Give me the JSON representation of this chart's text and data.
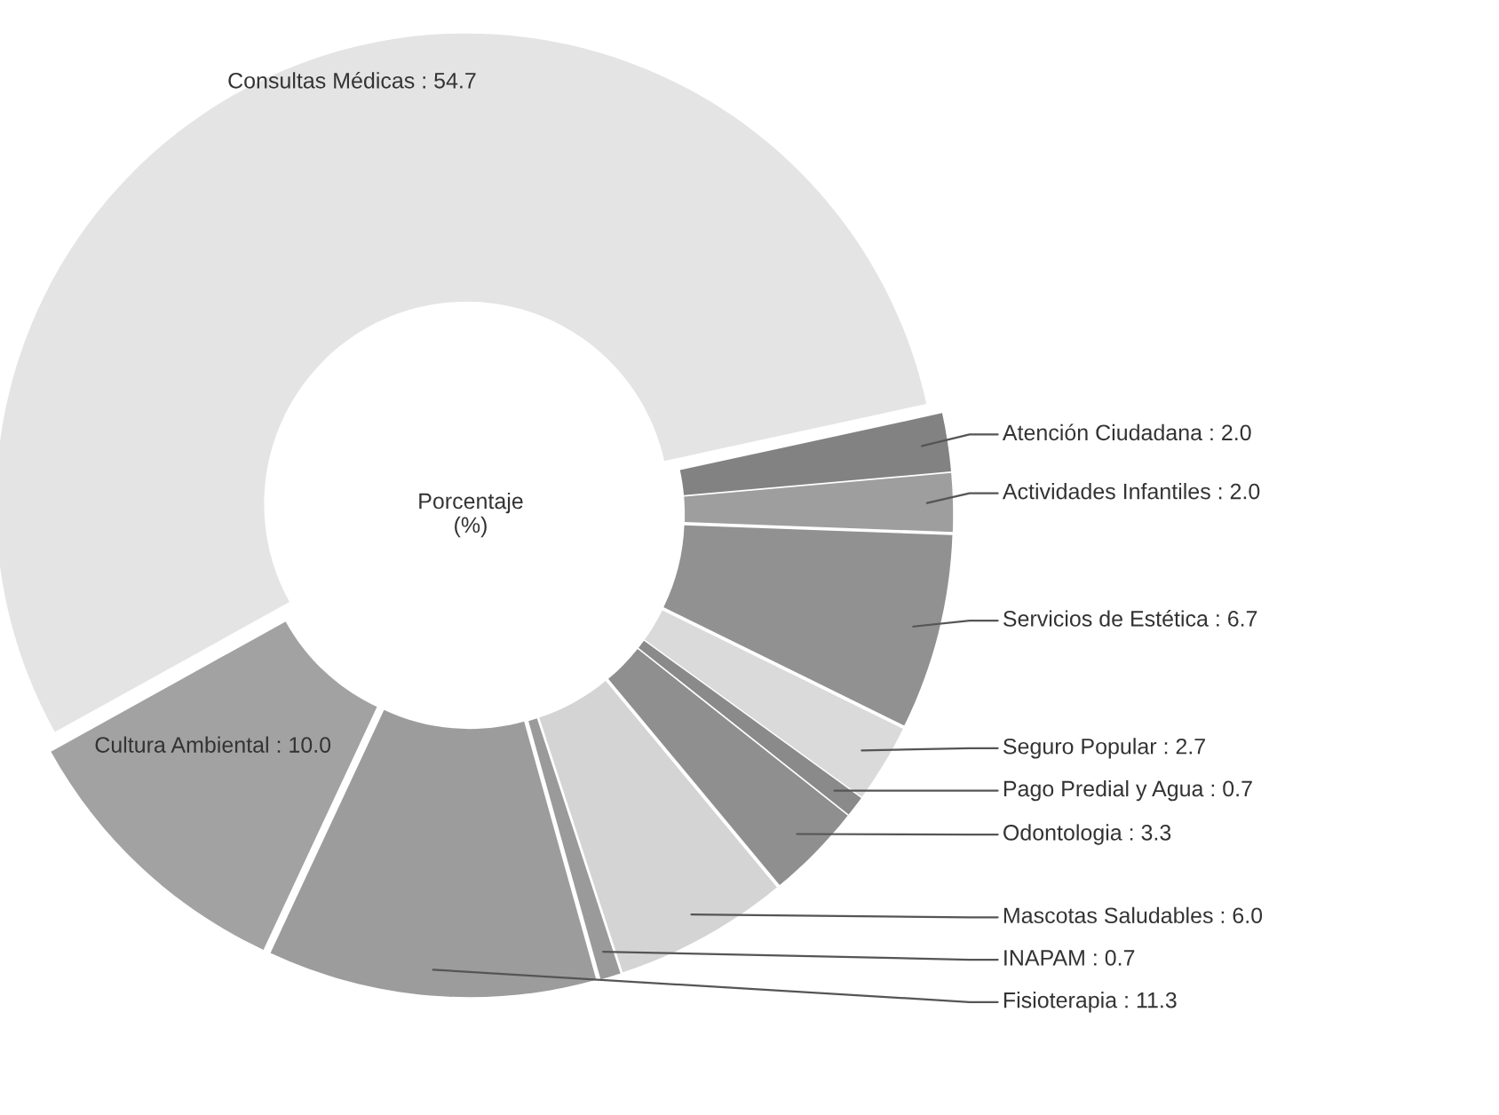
{
  "chart_data": {
    "type": "donut",
    "categories": [
      "Consultas Médicas",
      "Atención Ciudadana",
      "Actividades Infantiles",
      "Servicios de Estética",
      "Seguro Popular",
      "Pago Predial y Agua",
      "Odontologia",
      "Mascotas Saludables",
      "INAPAM",
      "Fisioterapia",
      "Cultura Ambiental"
    ],
    "values": [
      54.7,
      2.0,
      2.0,
      6.7,
      2.7,
      0.7,
      3.3,
      6.0,
      0.7,
      11.3,
      10.0
    ],
    "value_labels": [
      "54.7",
      "2.0",
      "2.0",
      "6.7",
      "2.7",
      "0.7",
      "3.3",
      "6.0",
      "0.7",
      "11.3",
      "10.0"
    ],
    "colors": [
      "#e4e4e4",
      "#828282",
      "#9e9e9e",
      "#919191",
      "#dadada",
      "#8a8a8a",
      "#8f8f8f",
      "#d4d4d4",
      "#9a9a9a",
      "#9c9c9c",
      "#a2a2a2"
    ],
    "annotations": [
      "Porcentaje\n(%)"
    ],
    "legend": false
  }
}
